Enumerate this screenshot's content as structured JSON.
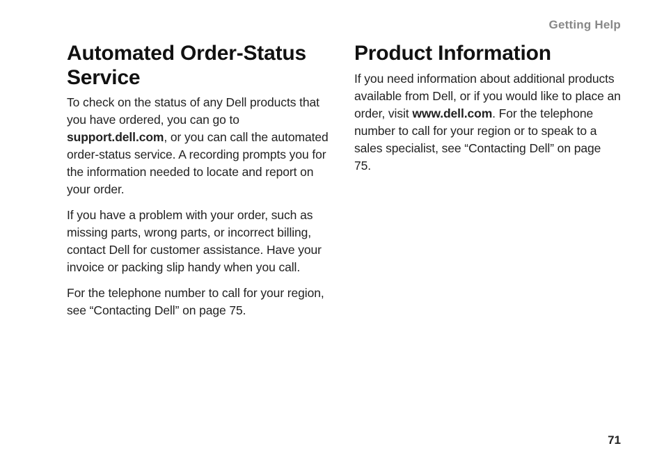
{
  "header": {
    "section": "Getting Help"
  },
  "left": {
    "heading": "Automated Order-Status Service",
    "p1_a": "To check on the status of any Dell products that you have ordered, you can go to ",
    "p1_bold": "support.dell.com",
    "p1_b": ", or you can call the automated order-status service. A recording prompts you for the information needed to locate and report on your order.",
    "p2": "If you have a problem with your order, such as missing parts, wrong parts, or incorrect billing, contact Dell for customer assistance. Have your invoice or packing slip handy when you call.",
    "p3": "For the telephone number to call for your region, see “Contacting Dell” on page 75."
  },
  "right": {
    "heading": "Product Information",
    "p1_a": "If you need information about additional products available from Dell, or if you would like to place an order, visit ",
    "p1_bold": "www.dell.com",
    "p1_b": ". For the telephone number to call for your region or to speak to a sales specialist, see “Contacting Dell” on page 75."
  },
  "footer": {
    "page_number": "71"
  }
}
